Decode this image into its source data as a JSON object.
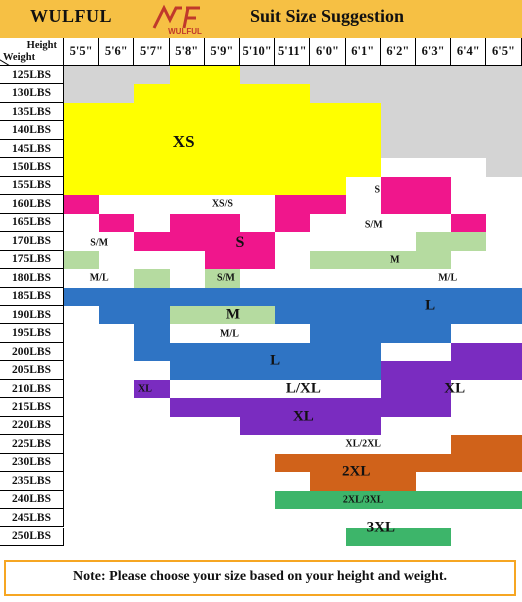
{
  "header": {
    "brand": "WULFUL",
    "logo_mark": "WF",
    "logo_text": "WULFUL",
    "title": "Suit Size Suggestion"
  },
  "corner": {
    "height_label": "Height",
    "weight_label": "Weight"
  },
  "heights": [
    "5'5\"",
    "5'6\"",
    "5'7\"",
    "5'8\"",
    "5'9\"",
    "5'10\"",
    "5'11\"",
    "6'0\"",
    "6'1\"",
    "6'2\"",
    "6'3\"",
    "6'4\"",
    "6'5\""
  ],
  "weights": [
    "125LBS",
    "130LBS",
    "135LBS",
    "140LBS",
    "145LBS",
    "150LBS",
    "155LBS",
    "160LBS",
    "165LBS",
    "170LBS",
    "175LBS",
    "180LBS",
    "185LBS",
    "190LBS",
    "195LBS",
    "200LBS",
    "205LBS",
    "210LBS",
    "215LBS",
    "220LBS",
    "225LBS",
    "230LBS",
    "235LBS",
    "240LBS",
    "245LBS",
    "250LBS"
  ],
  "colors": {
    "header": "#f6c044",
    "empty": "#d4d4d4",
    "white": "#ffffff",
    "XS": "#ffff00",
    "S": "#f0168c",
    "M": "#b5dba0",
    "L": "#2f74c4",
    "XL": "#7a2cc0",
    "2XL": "#d0621a",
    "3XL": "#3db56a",
    "frame": "#f6a623"
  },
  "grid_rows": [
    "...YY........",
    "..YYYYY......",
    "YYYYYYYYY....",
    "YYYYYYYYY....",
    "YYYYYYYYY....",
    "YYYYYYYYYWWW.",
    "YYYYYYYYWPPWW",
    "PWWWWWPPWPPWW",
    "WPWPPWPWWWWPW",
    "WWPPPPWWWWGGW",
    "GWWWPPWGGGGWW",
    "WWGWGWWWWWWWW",
    "BBBBBBBBBBBBB",
    "WBBGGGBBBBBBB",
    "WWBWWWWBBBBWW",
    "WWBBBBBBBWWVV",
    "WWWBBBBBBVVVV",
    "WWVWWWWWWVVWW",
    "WWWVVVVVVVVWW",
    "WWWWWVVVVWWWW",
    "WWWWWWWWWWWOO",
    "WWWWWWOOOOOOO",
    "WWWWWWWOOOWWW",
    "WWWWWWNNNNNNN",
    "WWWWWWWWWWWWW",
    "WWWWWWWWNNNWW"
  ],
  "zone_labels": [
    {
      "text": "XS",
      "size": "XS"
    },
    {
      "text": "XS/S",
      "size": "small"
    },
    {
      "text": "S",
      "size": "S"
    },
    {
      "text": "S",
      "size": "Ssmall"
    },
    {
      "text": "S/M",
      "size": "small"
    },
    {
      "text": "S/M",
      "size": "small"
    },
    {
      "text": "S/M",
      "size": "small"
    },
    {
      "text": "M",
      "size": "M"
    },
    {
      "text": "M",
      "size": "Msmall"
    },
    {
      "text": "M/L",
      "size": "small"
    },
    {
      "text": "M/L",
      "size": "small"
    },
    {
      "text": "M/L",
      "size": "small"
    },
    {
      "text": "L",
      "size": "L"
    },
    {
      "text": "L",
      "size": "L"
    },
    {
      "text": "L/XL",
      "size": "L"
    },
    {
      "text": "XL",
      "size": "Xsmall"
    },
    {
      "text": "XL",
      "size": "L"
    },
    {
      "text": "XL",
      "size": "L"
    },
    {
      "text": "XL/2XL",
      "size": "small"
    },
    {
      "text": "2XL",
      "size": "L"
    },
    {
      "text": "2XL/3XL",
      "size": "small"
    },
    {
      "text": "3XL",
      "size": "L"
    }
  ],
  "footer": {
    "note": "Note: Please choose your size based on your height and weight."
  }
}
